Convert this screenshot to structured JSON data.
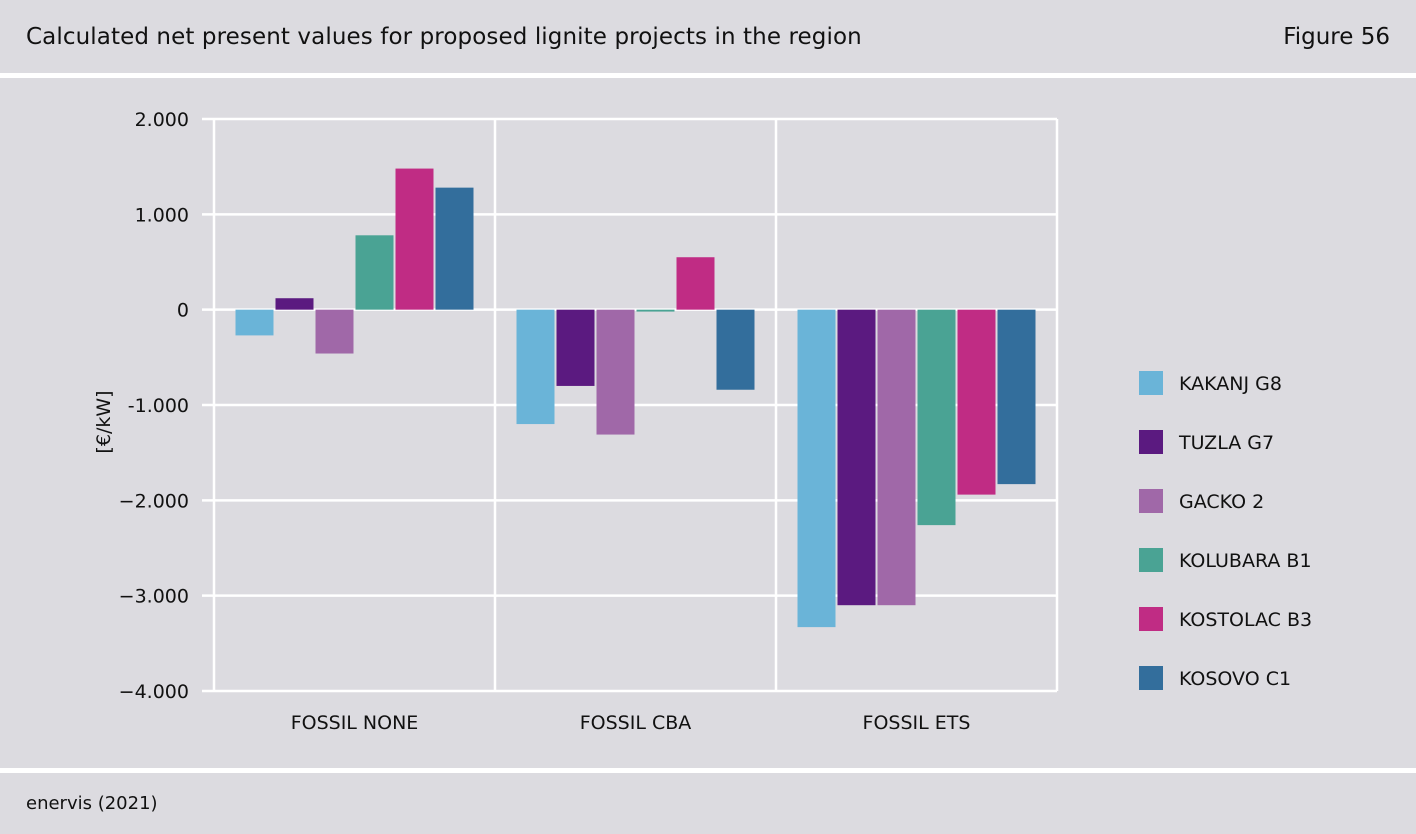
{
  "header": {
    "title": "Calculated net present values for proposed lignite projects in the region",
    "figure_label": "Figure 56"
  },
  "footer": {
    "source": "enervis (2021)"
  },
  "chart_data": {
    "type": "bar",
    "title": "Calculated net present values for proposed lignite projects in the region",
    "xlabel": "",
    "ylabel": "[€/kW]",
    "categories": [
      "FOSSIL NONE",
      "FOSSIL CBA",
      "FOSSIL ETS"
    ],
    "ylim": [
      -4000,
      2000
    ],
    "yticks": [
      2000,
      1000,
      0,
      -1000,
      -2000,
      -3000,
      -4000
    ],
    "ytick_labels": [
      "2.000",
      "1.000",
      "0",
      "-1.000",
      "−2.000",
      "−3.000",
      "−4.000"
    ],
    "grid": true,
    "legend_position": "right",
    "series": [
      {
        "name": "KAKANJ G8",
        "color": "#6ab4d8",
        "values": [
          -270,
          -1200,
          -3330
        ]
      },
      {
        "name": "TUZLA G7",
        "color": "#5b1a80",
        "values": [
          120,
          -800,
          -3100
        ]
      },
      {
        "name": "GACKO 2",
        "color": "#a068a8",
        "values": [
          -460,
          -1310,
          -3100
        ]
      },
      {
        "name": "KOLUBARA B1",
        "color": "#4aa394",
        "values": [
          780,
          -20,
          -2260
        ]
      },
      {
        "name": "KOSTOLAC B3",
        "color": "#c02c84",
        "values": [
          1480,
          550,
          -1940
        ]
      },
      {
        "name": "KOSOVO C1",
        "color": "#336e9c",
        "values": [
          1280,
          -840,
          -1830
        ]
      }
    ]
  }
}
